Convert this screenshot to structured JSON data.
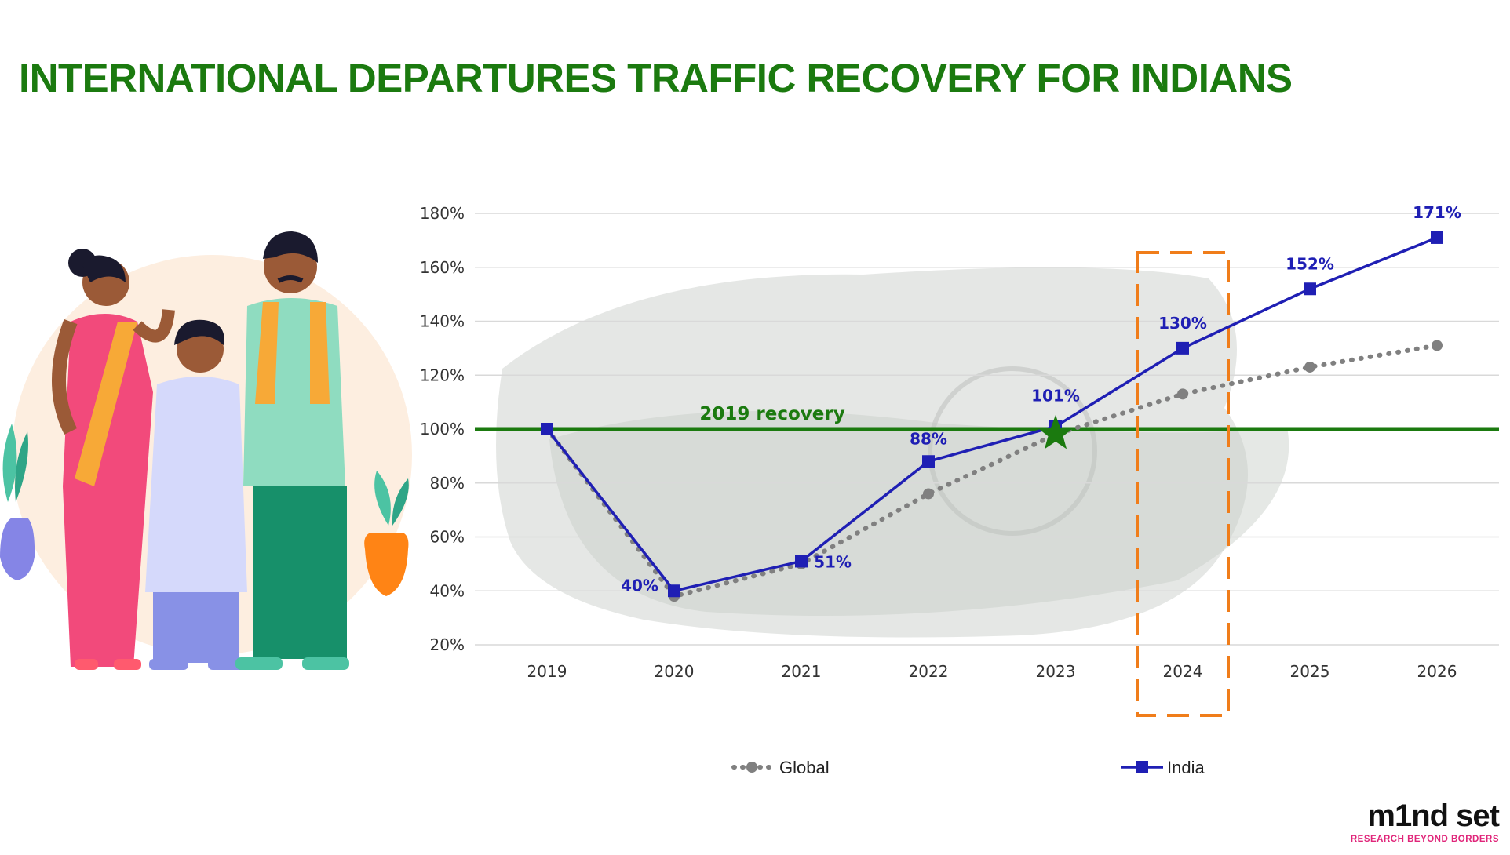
{
  "page": {
    "title": "INTERNATIONAL DEPARTURES TRAFFIC RECOVERY FOR INDIANS"
  },
  "logo": {
    "wordmark": "m1nd set",
    "tagline": "RESEARCH BEYOND BORDERS",
    "accent_color": "#e0267a"
  },
  "colors": {
    "title": "#1b7a0f",
    "india": "#1f1fb4",
    "global": "#808080",
    "reference": "#1b7a0f",
    "highlight": "#f07d1a",
    "grid": "#d9d9d9"
  },
  "chart_data": {
    "type": "line",
    "title": "",
    "xlabel": "",
    "ylabel": "",
    "categories": [
      "2019",
      "2020",
      "2021",
      "2022",
      "2023",
      "2024",
      "2025",
      "2026"
    ],
    "ylim": [
      20,
      180
    ],
    "yticks": [
      20,
      40,
      60,
      80,
      100,
      120,
      140,
      160,
      180
    ],
    "ytick_format": "%",
    "grid": true,
    "legend_position": "bottom",
    "series": [
      {
        "name": "Global",
        "style": "dotted-circle",
        "color": "#808080",
        "values": [
          100,
          38,
          50,
          76,
          98,
          113,
          123,
          131
        ]
      },
      {
        "name": "India",
        "style": "solid-square",
        "color": "#1f1fb4",
        "values": [
          100,
          40,
          51,
          88,
          101,
          130,
          152,
          171
        ],
        "data_labels": [
          "",
          "40%",
          "51%",
          "88%",
          "101%",
          "130%",
          "152%",
          "171%"
        ]
      }
    ],
    "reference_line": {
      "value": 100,
      "label": "2019 recovery",
      "color": "#1b7a0f"
    },
    "highlight_category": "2024",
    "marker": {
      "category": "2023",
      "shape": "star",
      "color": "#1b7a0f"
    }
  }
}
